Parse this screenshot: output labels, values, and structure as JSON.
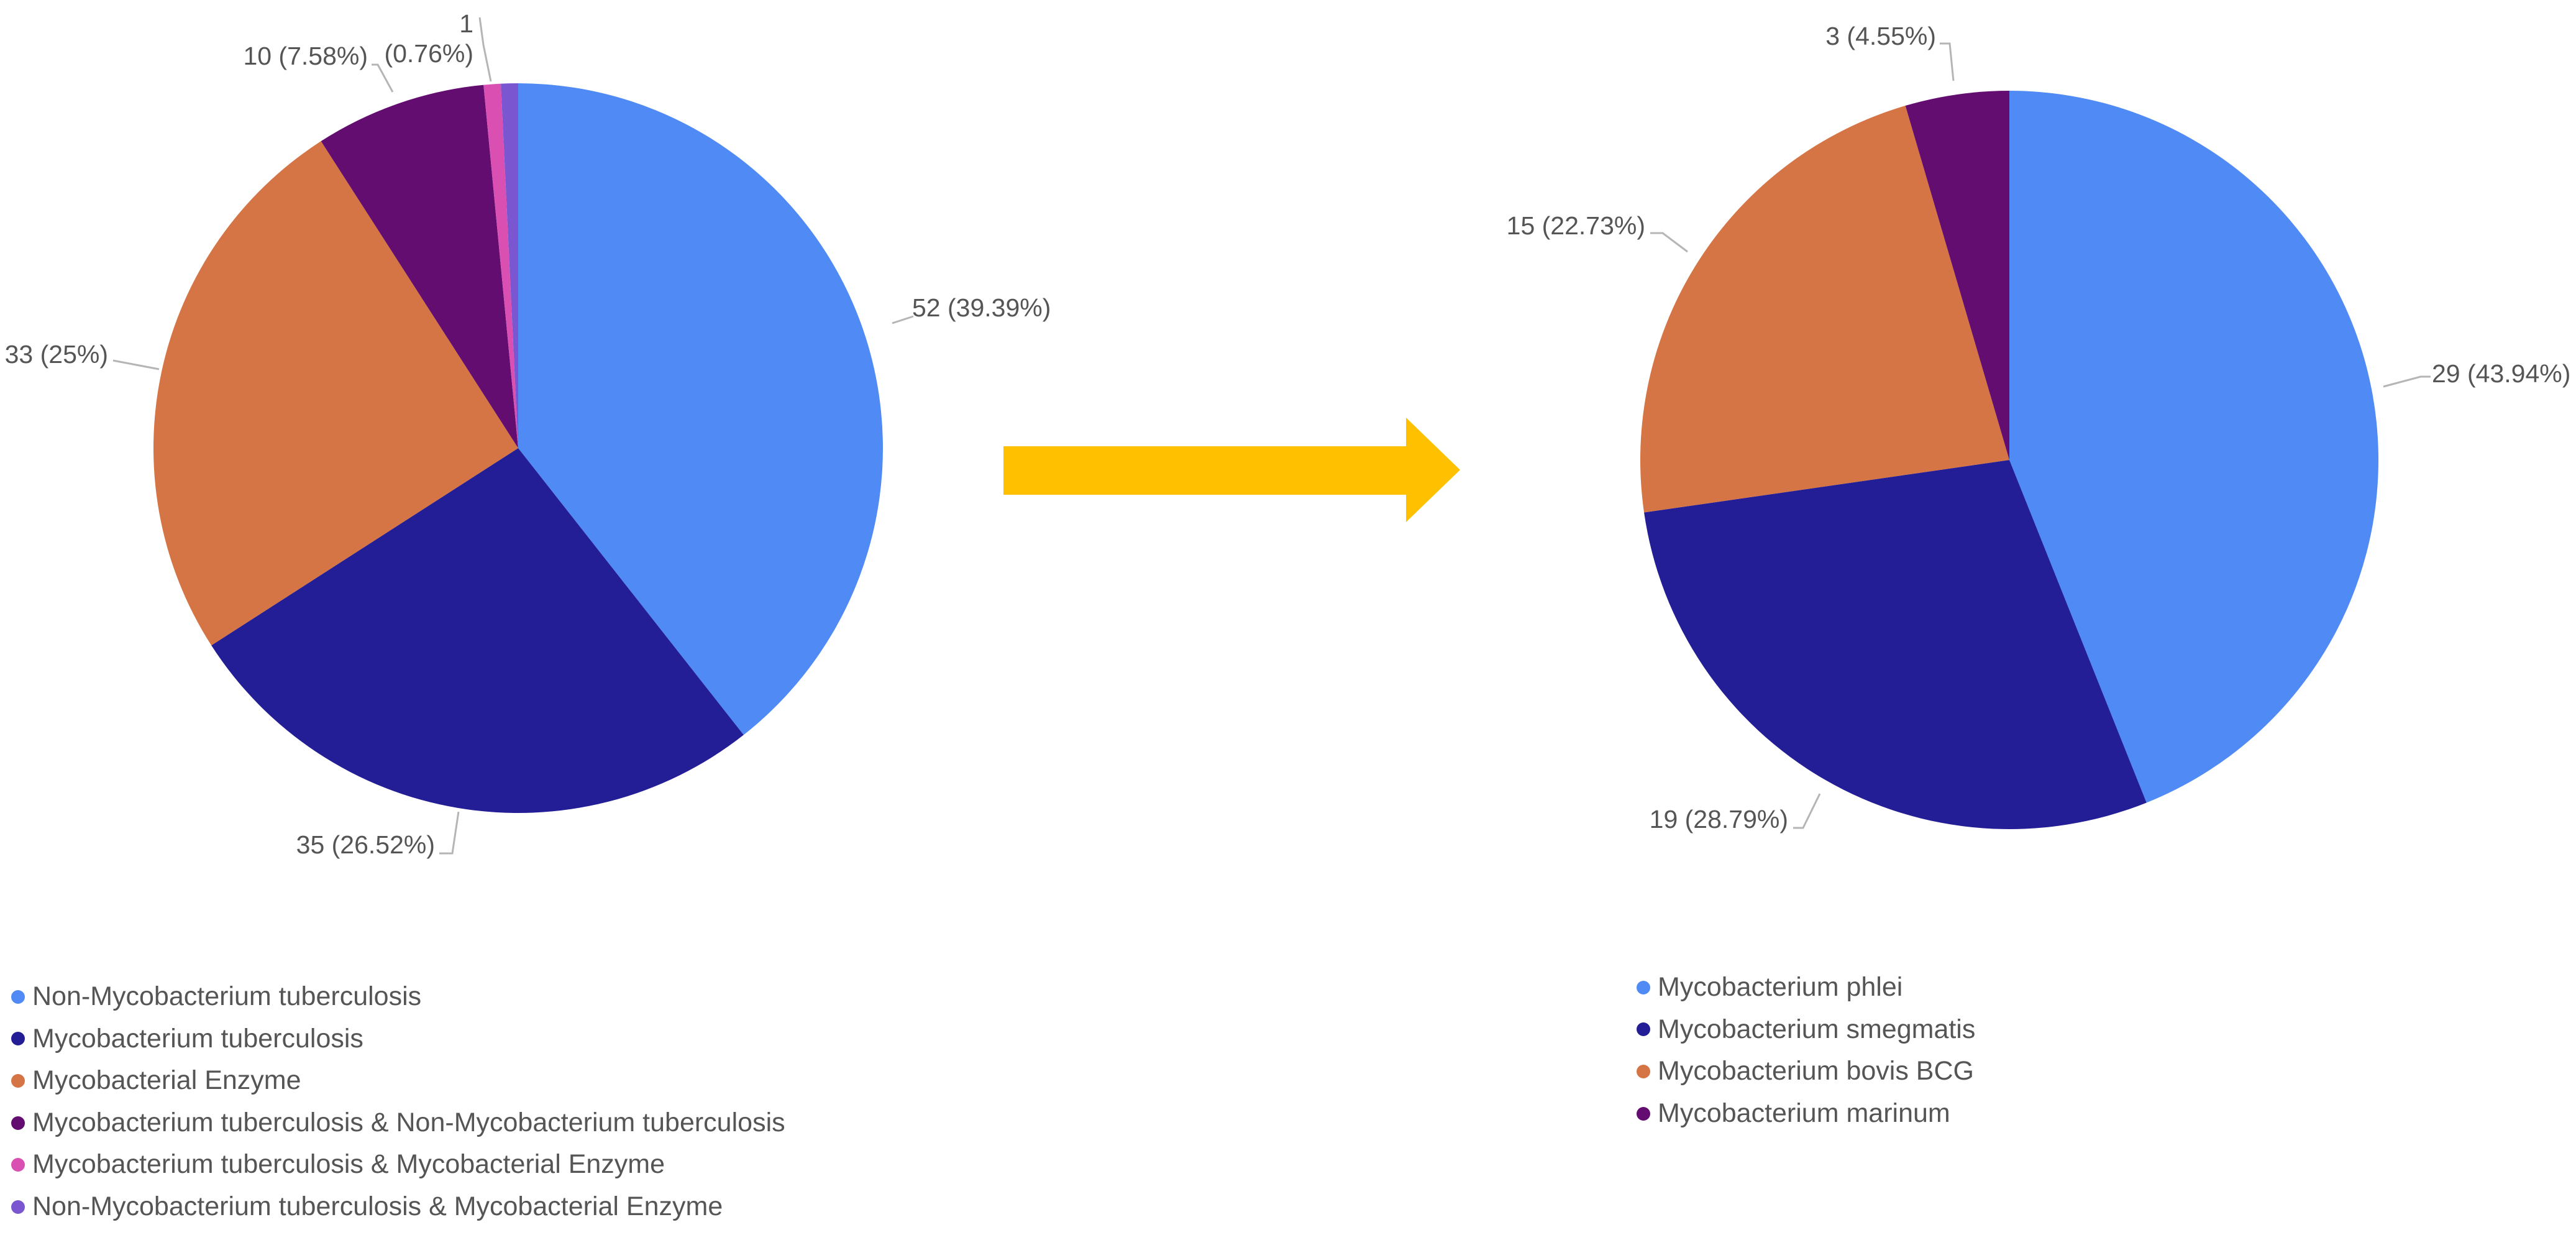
{
  "chart_data": [
    {
      "type": "pie",
      "title": "",
      "slices": [
        {
          "name": "Non-Mycobacterium tuberculosis",
          "value": 52,
          "label": "52 (39.39%)",
          "color": "#4f8af5"
        },
        {
          "name": "Mycobacterium tuberculosis",
          "value": 35,
          "label": "35 (26.52%)",
          "color": "#231d96"
        },
        {
          "name": "Mycobacterial Enzyme",
          "value": 33,
          "label": "33 (25%)",
          "color": "#d57545"
        },
        {
          "name": "Mycobacterium tuberculosis & Non-Mycobacterium tuberculosis",
          "value": 10,
          "label": "10 (7.58%)",
          "color": "#620d6f"
        },
        {
          "name": "Mycobacterium tuberculosis & Mycobacterial Enzyme",
          "value": 1,
          "label": "",
          "color": "#d94fb2"
        },
        {
          "name": "Non-Mycobacterium tuberculosis & Mycobacterial Enzyme",
          "value": 1,
          "label": "1\n(0.76%)",
          "color": "#7a57d1"
        }
      ]
    },
    {
      "type": "pie",
      "title": "",
      "slices": [
        {
          "name": "Mycobacterium phlei",
          "value": 29,
          "label": "29 (43.94%)",
          "color": "#4f8af5"
        },
        {
          "name": "Mycobacterium smegmatis",
          "value": 19,
          "label": "19 (28.79%)",
          "color": "#231d96"
        },
        {
          "name": "Mycobacterium bovis BCG",
          "value": 15,
          "label": "15 (22.73%)",
          "color": "#d57545"
        },
        {
          "name": "Mycobacterium marinum",
          "value": 3,
          "label": "3 (4.55%)",
          "color": "#620d6f"
        }
      ]
    }
  ],
  "arrow": {
    "color": "#ffc000",
    "icon": "right-arrow-icon"
  },
  "colors": {
    "label_text": "#555555",
    "leader_line": "#b5b5b5"
  }
}
